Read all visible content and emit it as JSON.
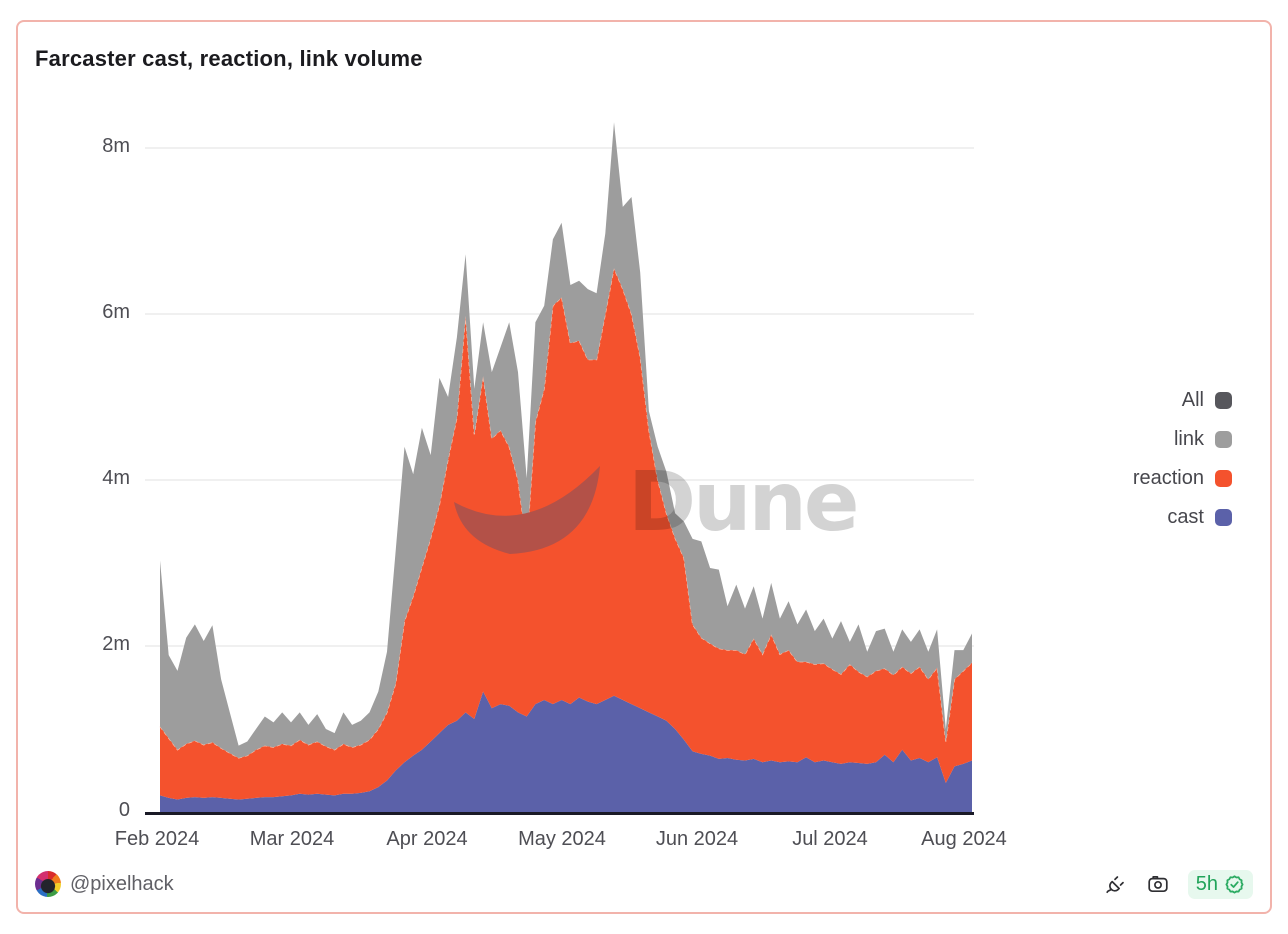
{
  "card": {
    "title": "Farcaster cast, reaction, link volume"
  },
  "watermark": {
    "text": "Dune",
    "icon": "dune-crescent-icon"
  },
  "legend": [
    {
      "label": "All",
      "color": "#57575c"
    },
    {
      "label": "link",
      "color": "#9d9d9d"
    },
    {
      "label": "reaction",
      "color": "#f4522d"
    },
    {
      "label": "cast",
      "color": "#5b61a9"
    }
  ],
  "footer": {
    "author": "@pixelhack",
    "freshness": "5h",
    "icons": [
      "plug-icon",
      "camera-icon",
      "verified-seal-icon"
    ]
  },
  "chart_data": {
    "type": "area",
    "stacked": true,
    "title": "Farcaster cast, reaction, link volume",
    "x_start": "2024-02-01",
    "x_end": "2024-08-05",
    "x_step_days": 2,
    "x_tick_labels": [
      "Feb 2024",
      "Mar 2024",
      "Apr 2024",
      "May 2024",
      "Jun 2024",
      "Jul 2024",
      "Aug 2024"
    ],
    "y_ticks": [
      {
        "label": "0",
        "value": 0
      },
      {
        "label": "2m",
        "value": 2
      },
      {
        "label": "4m",
        "value": 4
      },
      {
        "label": "6m",
        "value": 6
      },
      {
        "label": "8m",
        "value": 8
      }
    ],
    "y_unit": "millions",
    "ylim": [
      0,
      8.4
    ],
    "grid": "horizontal",
    "legend_position": "right",
    "series": [
      {
        "name": "cast",
        "color": "#5b61a9",
        "values": [
          0.2,
          0.17,
          0.15,
          0.17,
          0.18,
          0.17,
          0.18,
          0.17,
          0.16,
          0.15,
          0.16,
          0.17,
          0.18,
          0.18,
          0.19,
          0.2,
          0.22,
          0.21,
          0.22,
          0.21,
          0.2,
          0.22,
          0.22,
          0.23,
          0.25,
          0.3,
          0.38,
          0.5,
          0.6,
          0.68,
          0.75,
          0.85,
          0.95,
          1.05,
          1.1,
          1.2,
          1.12,
          1.45,
          1.25,
          1.3,
          1.28,
          1.2,
          1.15,
          1.3,
          1.35,
          1.3,
          1.35,
          1.3,
          1.38,
          1.33,
          1.3,
          1.35,
          1.4,
          1.35,
          1.3,
          1.25,
          1.2,
          1.15,
          1.1,
          1.0,
          0.87,
          0.73,
          0.7,
          0.68,
          0.64,
          0.65,
          0.63,
          0.62,
          0.64,
          0.6,
          0.62,
          0.6,
          0.61,
          0.6,
          0.66,
          0.6,
          0.62,
          0.6,
          0.58,
          0.6,
          0.59,
          0.58,
          0.6,
          0.69,
          0.6,
          0.75,
          0.62,
          0.65,
          0.6,
          0.66,
          0.35,
          0.55,
          0.58,
          0.62
        ]
      },
      {
        "name": "reaction",
        "color": "#f4522d",
        "values": [
          0.83,
          0.72,
          0.6,
          0.65,
          0.68,
          0.64,
          0.66,
          0.6,
          0.55,
          0.5,
          0.52,
          0.58,
          0.62,
          0.6,
          0.63,
          0.6,
          0.65,
          0.6,
          0.63,
          0.58,
          0.55,
          0.6,
          0.56,
          0.58,
          0.62,
          0.7,
          0.82,
          1.05,
          1.7,
          1.92,
          2.2,
          2.45,
          2.75,
          3.2,
          3.65,
          4.78,
          3.43,
          3.8,
          3.25,
          3.3,
          3.12,
          2.8,
          2.05,
          3.4,
          3.75,
          4.8,
          4.85,
          4.35,
          4.3,
          4.12,
          4.15,
          4.65,
          5.15,
          4.95,
          4.7,
          4.23,
          3.4,
          2.85,
          2.5,
          2.3,
          2.19,
          1.53,
          1.4,
          1.35,
          1.33,
          1.3,
          1.32,
          1.28,
          1.45,
          1.3,
          1.52,
          1.3,
          1.34,
          1.21,
          1.15,
          1.18,
          1.17,
          1.12,
          1.08,
          1.18,
          1.1,
          1.05,
          1.1,
          1.04,
          1.05,
          1.0,
          1.05,
          1.1,
          1.0,
          1.08,
          0.5,
          1.05,
          1.12,
          1.18
        ]
      },
      {
        "name": "link",
        "color": "#9d9d9d",
        "values": [
          2.0,
          1.0,
          0.95,
          1.28,
          1.4,
          1.25,
          1.41,
          0.83,
          0.49,
          0.15,
          0.17,
          0.25,
          0.35,
          0.3,
          0.38,
          0.28,
          0.33,
          0.24,
          0.33,
          0.21,
          0.2,
          0.38,
          0.27,
          0.29,
          0.33,
          0.45,
          0.73,
          1.6,
          2.1,
          1.47,
          1.68,
          1.0,
          1.53,
          0.75,
          0.97,
          0.74,
          0.55,
          0.65,
          0.8,
          1.0,
          1.5,
          1.3,
          0.82,
          1.2,
          1.0,
          0.8,
          0.9,
          0.7,
          0.72,
          0.85,
          0.8,
          0.97,
          1.76,
          0.99,
          1.41,
          1.02,
          0.23,
          0.4,
          0.5,
          0.3,
          0.44,
          1.03,
          1.16,
          0.91,
          0.95,
          0.53,
          0.79,
          0.55,
          0.63,
          0.43,
          0.62,
          0.43,
          0.59,
          0.45,
          0.63,
          0.4,
          0.54,
          0.37,
          0.64,
          0.27,
          0.57,
          0.3,
          0.48,
          0.48,
          0.28,
          0.45,
          0.38,
          0.45,
          0.33,
          0.46,
          0.15,
          0.35,
          0.25,
          0.35
        ]
      },
      {
        "name": "All",
        "color": "#57575c",
        "values": [
          3.03,
          1.89,
          1.7,
          2.1,
          2.26,
          2.06,
          2.25,
          1.6,
          1.2,
          0.8,
          0.85,
          1.0,
          1.15,
          1.08,
          1.2,
          1.08,
          1.2,
          1.05,
          1.18,
          1.0,
          0.95,
          1.2,
          1.05,
          1.1,
          1.2,
          1.45,
          1.93,
          3.15,
          4.4,
          4.07,
          4.63,
          4.3,
          5.23,
          5.0,
          5.72,
          6.72,
          5.1,
          5.9,
          5.3,
          5.6,
          5.9,
          5.3,
          4.02,
          5.9,
          6.1,
          6.9,
          7.1,
          6.35,
          6.4,
          6.3,
          6.25,
          6.97,
          8.31,
          7.29,
          7.41,
          6.5,
          4.83,
          4.4,
          4.1,
          3.6,
          3.5,
          3.29,
          3.26,
          2.94,
          2.92,
          2.48,
          2.74,
          2.45,
          2.72,
          2.33,
          2.76,
          2.33,
          2.54,
          2.26,
          2.44,
          2.18,
          2.33,
          2.09,
          2.3,
          2.05,
          2.26,
          1.93,
          2.18,
          2.21,
          1.93,
          2.2,
          2.05,
          2.2,
          1.93,
          2.2,
          1.0,
          1.95,
          1.95,
          2.15
        ]
      }
    ]
  }
}
